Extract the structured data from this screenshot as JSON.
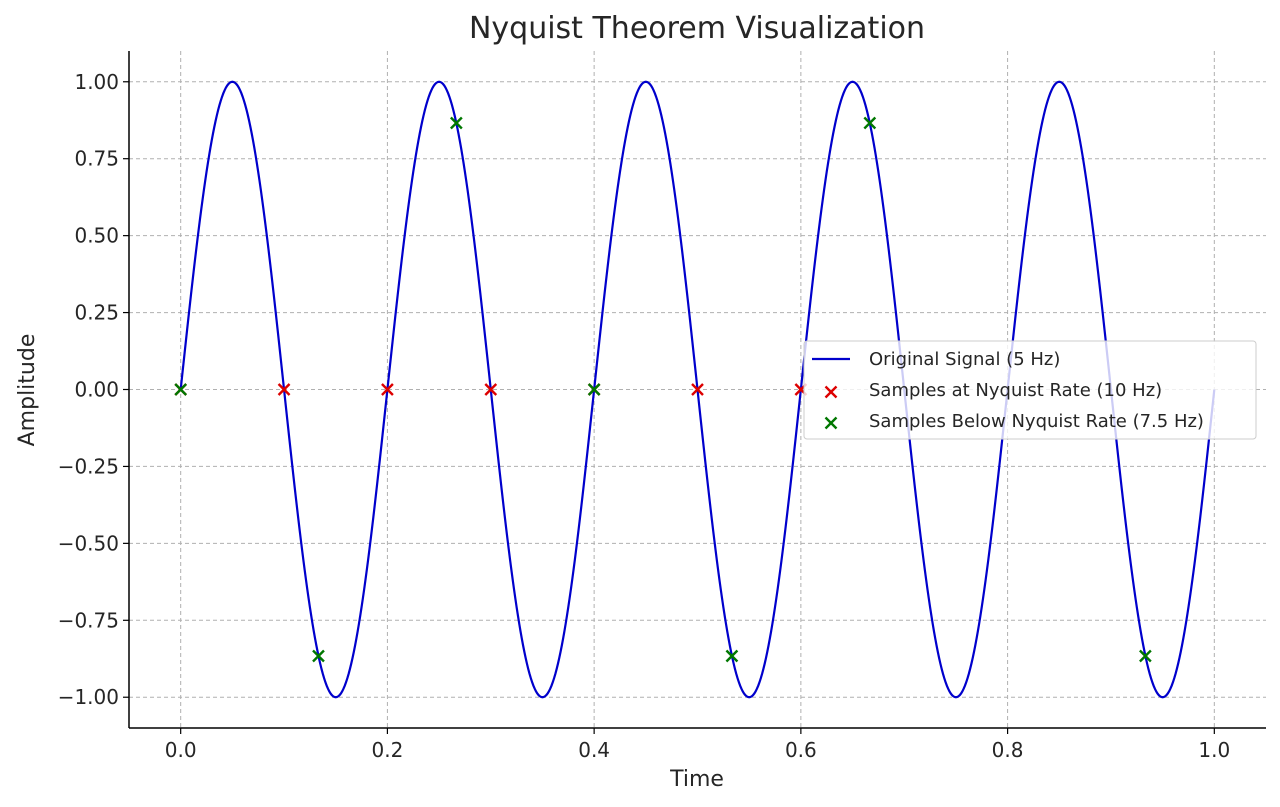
{
  "chart_data": {
    "type": "line",
    "title": "Nyquist Theorem Visualization",
    "xlabel": "Time",
    "ylabel": "Amplitude",
    "xlim": [
      -0.05,
      1.05
    ],
    "ylim": [
      -1.1,
      1.1
    ],
    "xticks": [
      0.0,
      0.2,
      0.4,
      0.6,
      0.8,
      1.0
    ],
    "xtick_labels": [
      "0.0",
      "0.2",
      "0.4",
      "0.6",
      "0.8",
      "1.0"
    ],
    "yticks": [
      1.0,
      0.75,
      0.5,
      0.25,
      0.0,
      -0.25,
      -0.5,
      -0.75,
      -1.0
    ],
    "ytick_labels": [
      "1.00",
      "0.75",
      "0.50",
      "0.25",
      "0.00",
      "−0.25",
      "−0.50",
      "−0.75",
      "−1.00"
    ],
    "grid": true,
    "legend_position": "center-right",
    "series": [
      {
        "name": "Original Signal (5 Hz)",
        "kind": "line",
        "color": "#0000cc",
        "function": "sin(2*pi*5*t)",
        "x_range": [
          0.0,
          1.0
        ]
      },
      {
        "name": "Samples at Nyquist Rate (10 Hz)",
        "kind": "scatter",
        "marker": "x",
        "color": "#dd0000",
        "x": [
          0.0,
          0.1,
          0.2,
          0.3,
          0.4,
          0.5,
          0.6
        ],
        "y": [
          0.0,
          0.0,
          0.0,
          0.0,
          0.0,
          0.0,
          0.0
        ]
      },
      {
        "name": "Samples Below Nyquist Rate (7.5 Hz)",
        "kind": "scatter",
        "marker": "x",
        "color": "#007700",
        "x": [
          0.0,
          0.1333,
          0.2667,
          0.4,
          0.5333,
          0.6667,
          0.9333
        ],
        "y": [
          0.0,
          -0.866,
          0.866,
          0.0,
          -0.866,
          0.866,
          -0.866
        ]
      }
    ]
  }
}
